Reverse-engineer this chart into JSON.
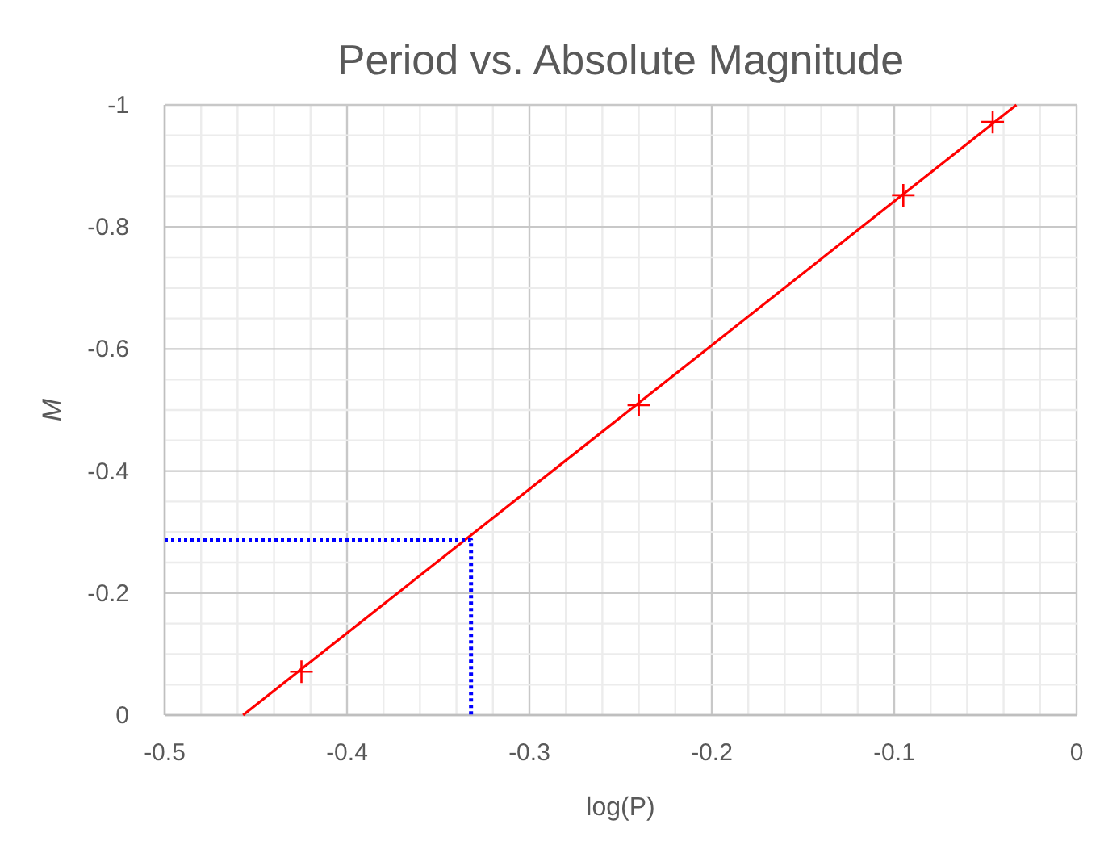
{
  "chart_data": {
    "type": "scatter",
    "title": "Period vs. Absolute Magnitude",
    "xlabel": "log(P)",
    "ylabel": "M",
    "xlim": [
      -0.5,
      0
    ],
    "ylim": [
      0,
      -1
    ],
    "xticks": [
      -0.5,
      {
        "value": -0.48,
        "label": null
      },
      {
        "value": -0.46,
        "label": null
      },
      {
        "value": -0.44,
        "label": null
      },
      {
        "value": -0.42,
        "label": null
      },
      -0.4,
      {
        "value": -0.38,
        "label": null
      },
      {
        "value": -0.36,
        "label": null
      },
      {
        "value": -0.34,
        "label": null
      },
      {
        "value": -0.32,
        "label": null
      },
      -0.3,
      {
        "value": -0.28,
        "label": null
      },
      {
        "value": -0.26,
        "label": null
      },
      {
        "value": -0.24,
        "label": null
      },
      {
        "value": -0.22,
        "label": null
      },
      -0.2,
      {
        "value": -0.18,
        "label": null
      },
      {
        "value": -0.16,
        "label": null
      },
      {
        "value": -0.14,
        "label": null
      },
      {
        "value": -0.12,
        "label": null
      },
      -0.1,
      {
        "value": -0.08,
        "label": null
      },
      {
        "value": -0.06,
        "label": null
      },
      {
        "value": -0.04,
        "label": null
      },
      {
        "value": -0.02,
        "label": null
      },
      0
    ],
    "yticks": [
      0,
      {
        "value": -0.05,
        "label": null
      },
      {
        "value": -0.1,
        "label": null
      },
      {
        "value": -0.15,
        "label": null
      },
      -0.2,
      {
        "value": -0.25,
        "label": null
      },
      {
        "value": -0.3,
        "label": null
      },
      {
        "value": -0.35,
        "label": null
      },
      -0.4,
      {
        "value": -0.45,
        "label": null
      },
      {
        "value": -0.5,
        "label": null
      },
      {
        "value": -0.55,
        "label": null
      },
      -0.6,
      {
        "value": -0.65,
        "label": null
      },
      {
        "value": -0.7,
        "label": null
      },
      {
        "value": -0.75,
        "label": null
      },
      -0.8,
      {
        "value": -0.85,
        "label": null
      },
      {
        "value": -0.9,
        "label": null
      },
      {
        "value": -0.95,
        "label": null
      },
      -1
    ],
    "grid": true,
    "series": [
      {
        "type": "line",
        "color": "#ff0000",
        "marker": "none",
        "line_style": "solid",
        "x": [
          -0.457,
          -0.033
        ],
        "values": [
          0,
          -1
        ]
      },
      {
        "type": "line",
        "color": "#0000ff",
        "marker": "none",
        "line_style": "dotted",
        "x": [
          -0.5,
          -0.332,
          -0.332
        ],
        "values": [
          -0.287,
          -0.287,
          0
        ]
      },
      {
        "color": "#ff0000",
        "marker": "cross",
        "x": [
          -0.425,
          -0.24,
          -0.095,
          -0.046
        ],
        "values": [
          -0.071,
          -0.508,
          -0.852,
          -0.972
        ]
      }
    ]
  }
}
